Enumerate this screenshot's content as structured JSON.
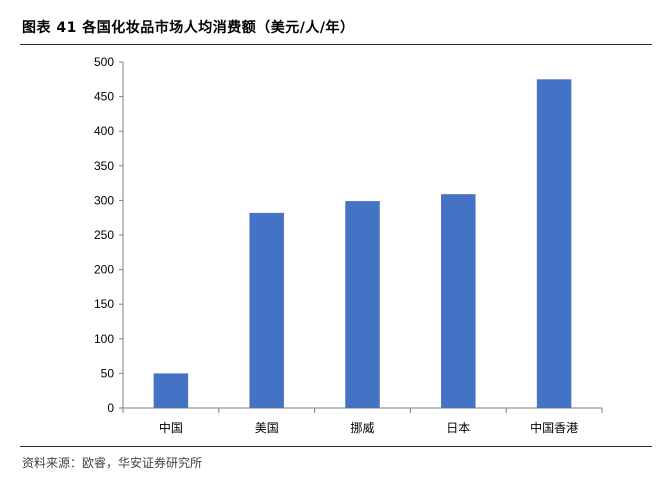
{
  "figure": {
    "title": "图表 41  各国化妆品市场人均消费额（美元/人/年）",
    "source": "资料来源：欧睿，华安证券研究所"
  },
  "chart_data": {
    "type": "bar",
    "title": "",
    "xlabel": "",
    "ylabel": "",
    "categories": [
      "中国",
      "美国",
      "挪威",
      "日本",
      "中国香港"
    ],
    "values": [
      50,
      282,
      299,
      309,
      475
    ],
    "ylim": [
      0,
      500
    ],
    "yticks": [
      0,
      50,
      100,
      150,
      200,
      250,
      300,
      350,
      400,
      450,
      500
    ],
    "grid": false,
    "legend": "none",
    "bar_color": "#4472C4"
  }
}
